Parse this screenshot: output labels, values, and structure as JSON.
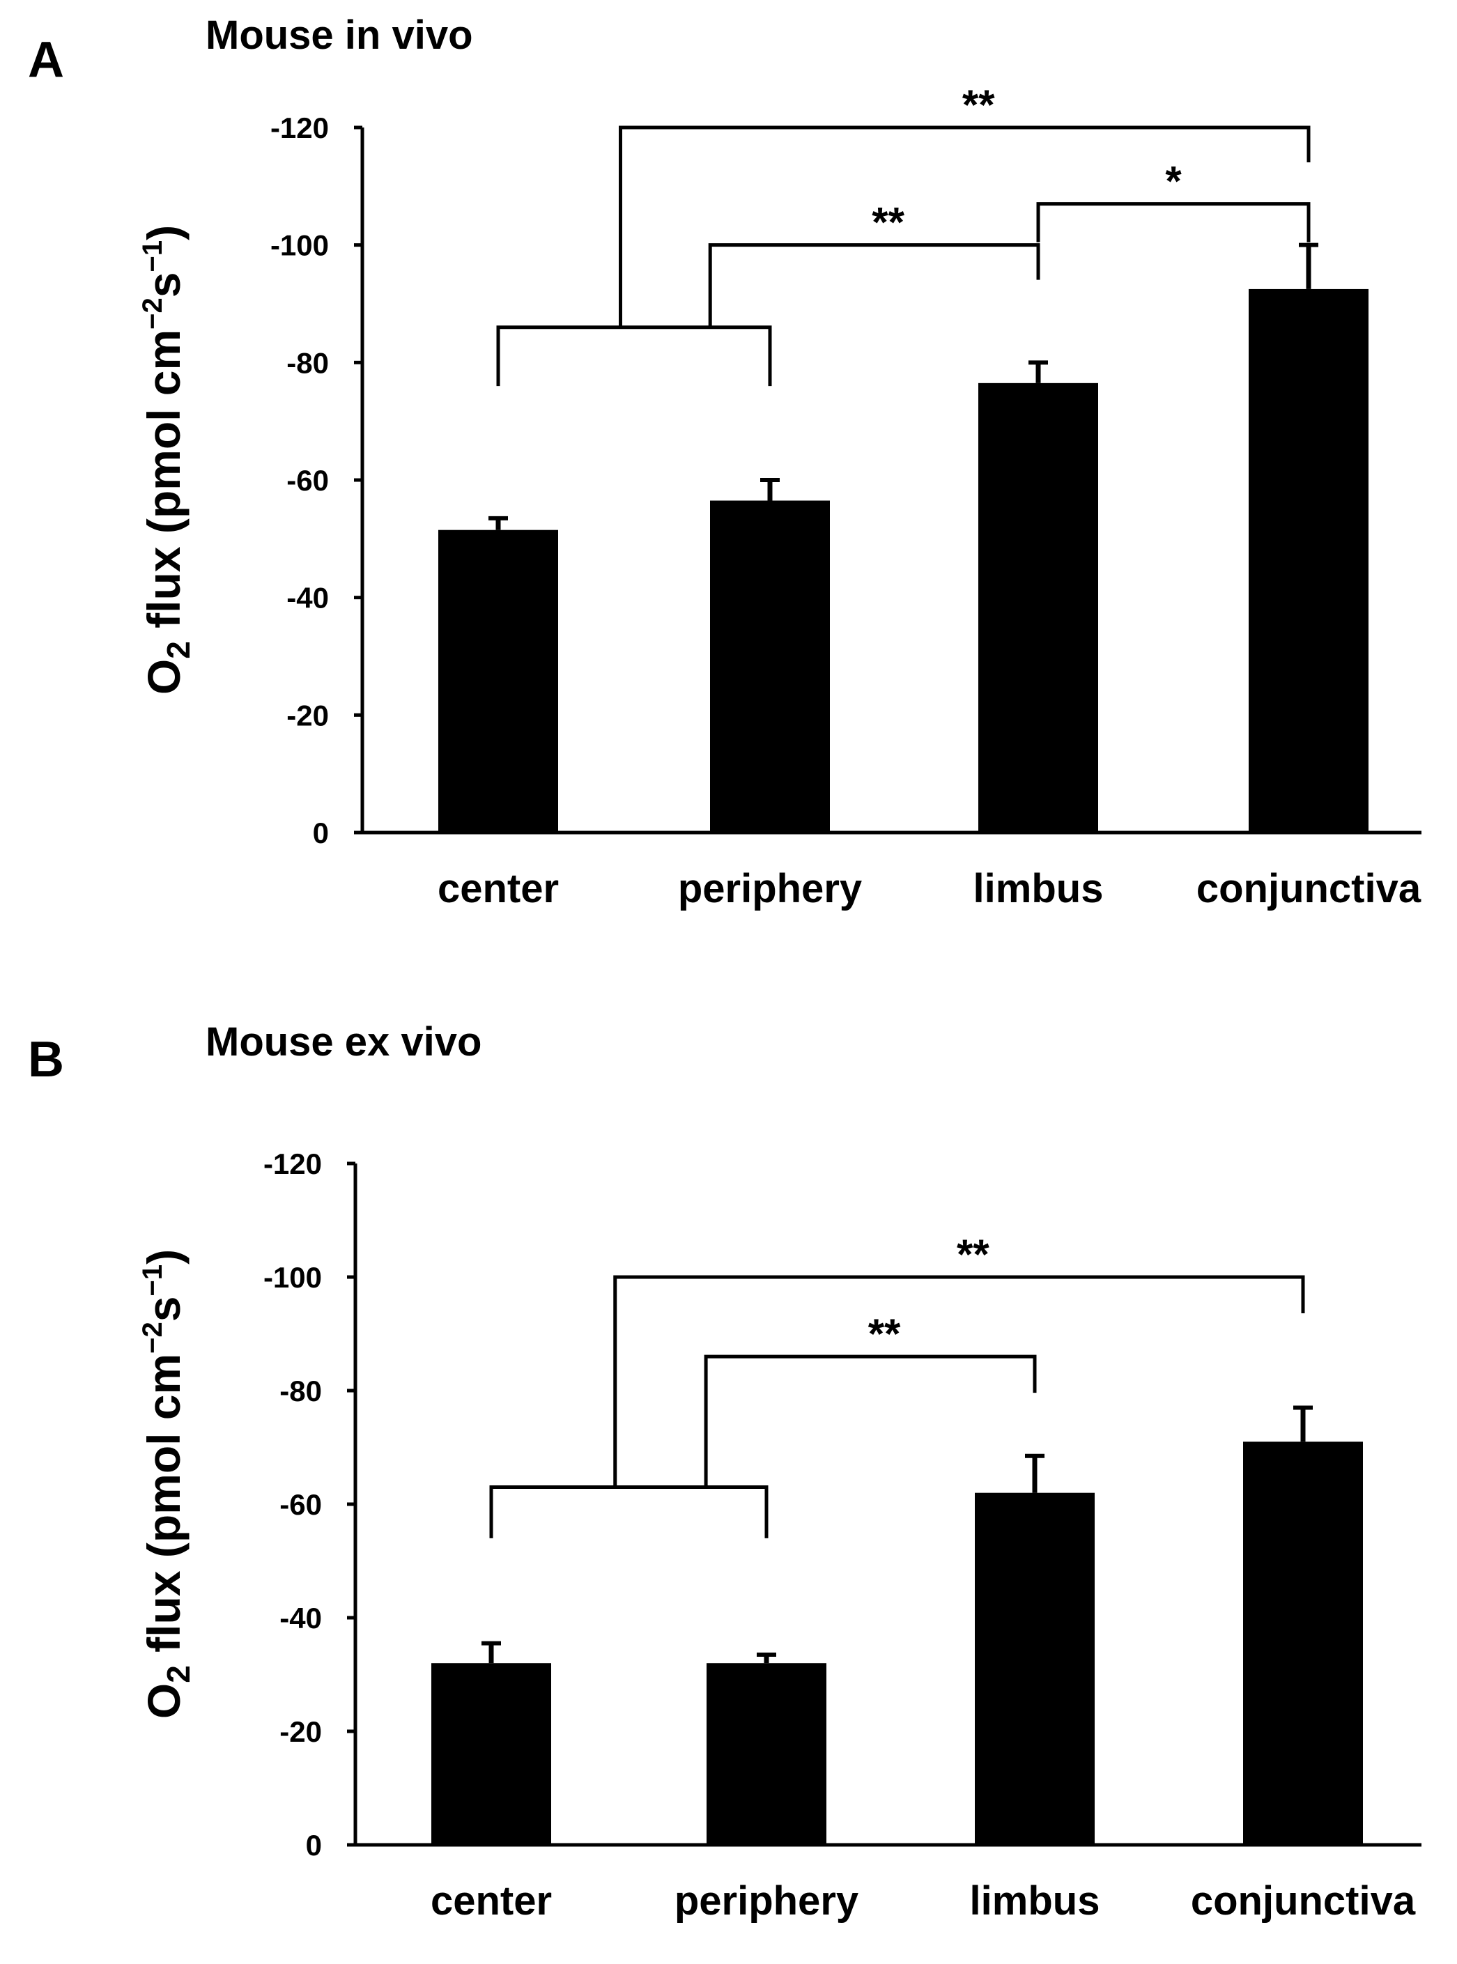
{
  "colors": {
    "bar": "#000000",
    "axis": "#000000",
    "background": "#ffffff"
  },
  "chart_data": [
    {
      "type": "bar",
      "panel": "A",
      "title": "Mouse in vivo",
      "ylabel": "O2 flux (pmol cm-2s-1)",
      "ylabel_parts": {
        "main": "O",
        "sub": "2",
        "mid": " flux (pmol cm",
        "sup1": "−2",
        "s": "s",
        "sup2": "−1",
        "close": ")"
      },
      "categories": [
        "center",
        "periphery",
        "limbus",
        "conjunctiva"
      ],
      "values": [
        -51.5,
        -56.5,
        -76.5,
        -92.5
      ],
      "errors": [
        2.0,
        3.5,
        3.5,
        7.5
      ],
      "ylim": [
        0,
        -120
      ],
      "yticks": [
        0,
        -20,
        -40,
        -60,
        -80,
        -100,
        -120
      ],
      "ytick_labels": [
        "0",
        "-20",
        "-40",
        "-60",
        "-80",
        "-100",
        "-120"
      ],
      "significance": [
        {
          "from_group": [
            0,
            1
          ],
          "to_index": 3,
          "label": "**",
          "level": -120
        },
        {
          "from_group": [
            0,
            1
          ],
          "to_index": 2,
          "label": "**",
          "level": -100
        },
        {
          "from_index": 2,
          "to_index": 3,
          "label": "*",
          "level": -107
        }
      ]
    },
    {
      "type": "bar",
      "panel": "B",
      "title": "Mouse ex vivo",
      "ylabel": "O2 flux (pmol cm-2s-1)",
      "ylabel_parts": {
        "main": "O",
        "sub": "2",
        "mid": " flux (pmol cm",
        "sup1": "−2",
        "s": "s",
        "sup2": "−1",
        "close": ")"
      },
      "categories": [
        "center",
        "periphery",
        "limbus",
        "conjunctiva"
      ],
      "values": [
        -32,
        -32,
        -62,
        -71
      ],
      "errors": [
        3.5,
        1.5,
        6.5,
        6.0
      ],
      "ylim": [
        0,
        -120
      ],
      "yticks": [
        0,
        -20,
        -40,
        -60,
        -80,
        -100,
        -120
      ],
      "ytick_labels": [
        "0",
        "-20",
        "-40",
        "-60",
        "-80",
        "-100",
        "-120"
      ],
      "significance": [
        {
          "from_group": [
            0,
            1
          ],
          "to_index": 3,
          "label": "**",
          "level": -100
        },
        {
          "from_group": [
            0,
            1
          ],
          "to_index": 2,
          "label": "**",
          "level": -86
        }
      ]
    }
  ]
}
